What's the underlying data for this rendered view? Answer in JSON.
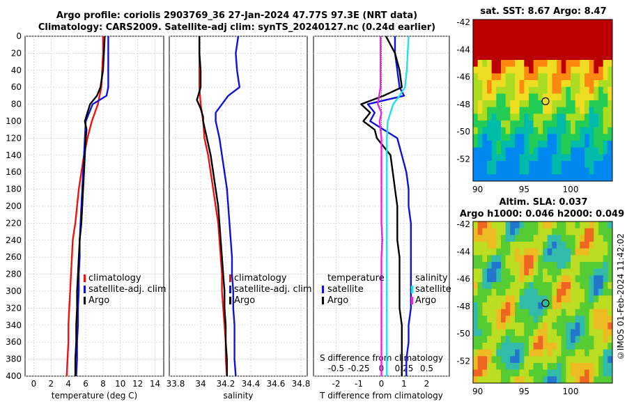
{
  "title_line1": "Argo profile: coriolis 2903769_36 27-Jan-2024 47.77S 97.3E (NRT data)",
  "title_line2": "Climatology: CARS2009. Satellite-adj clim: synTS_20240127.nc (0.24d earlier)",
  "sst_title": "sat. SST: 8.67 Argo: 8.47",
  "sla_title1": "Altim. SLA: 0.037",
  "sla_title2": "Argo h1000: 0.046 h2000: 0.049",
  "footer": "©IMOS 01-Feb-2024 11:42:02",
  "colors": {
    "clim": "#ee1111",
    "sat": "#1111dd",
    "argo": "#000000",
    "s_sat": "#22e0e8",
    "s_argo": "#ee22ee"
  },
  "chart_data": [
    {
      "type": "line",
      "panel": "temperature",
      "xlabel": "temperature (deg C)",
      "ylabel": "",
      "xlim": [
        -1,
        15
      ],
      "ylim": [
        0,
        400
      ],
      "xticks": [
        "0",
        "2",
        "4",
        "6",
        "8",
        "10",
        "12",
        "14"
      ],
      "yticks": [
        "0",
        "20",
        "40",
        "60",
        "80",
        "100",
        "120",
        "140",
        "160",
        "180",
        "200",
        "220",
        "240",
        "260",
        "280",
        "300",
        "320",
        "340",
        "360",
        "380",
        "400"
      ],
      "legend": [
        "climatology",
        "satellite-adj. clim",
        "Argo"
      ],
      "series": [
        {
          "name": "climatology",
          "color": "#ee1111",
          "depth": [
            0,
            20,
            40,
            60,
            80,
            100,
            120,
            140,
            160,
            180,
            200,
            220,
            240,
            260,
            280,
            300,
            320,
            340,
            360,
            380,
            400
          ],
          "values": [
            8.0,
            8.0,
            7.9,
            7.8,
            7.4,
            6.7,
            6.2,
            5.8,
            5.5,
            5.2,
            5.0,
            4.8,
            4.5,
            4.4,
            4.3,
            4.2,
            4.1,
            4.0,
            4.0,
            3.9,
            3.8
          ]
        },
        {
          "name": "satellite-adj. clim",
          "color": "#1111dd",
          "depth": [
            0,
            20,
            40,
            60,
            70,
            80,
            90,
            100,
            120,
            140,
            160,
            180,
            200,
            220,
            240,
            260,
            280,
            300,
            320,
            340,
            360,
            380,
            400
          ],
          "values": [
            8.6,
            8.6,
            8.6,
            8.6,
            8.4,
            6.8,
            6.4,
            6.0,
            5.9,
            5.8,
            5.7,
            5.6,
            5.5,
            5.4,
            5.3,
            5.3,
            5.2,
            5.2,
            5.1,
            5.1,
            5.0,
            5.0,
            4.9
          ]
        },
        {
          "name": "Argo",
          "color": "#000000",
          "depth": [
            0,
            20,
            40,
            60,
            70,
            80,
            90,
            100,
            110,
            120,
            140,
            160,
            180,
            200,
            220,
            240,
            260,
            280,
            300,
            320,
            340,
            360,
            380,
            400
          ],
          "values": [
            8.2,
            8.1,
            8.0,
            7.7,
            7.3,
            6.5,
            6.2,
            5.9,
            6.1,
            6.0,
            5.9,
            5.8,
            5.7,
            5.6,
            5.5,
            5.3,
            5.2,
            5.1,
            5.0,
            5.0,
            4.9,
            4.9,
            4.8,
            4.8
          ]
        }
      ]
    },
    {
      "type": "line",
      "panel": "salinity",
      "xlabel": "salinity",
      "xlim": [
        33.75,
        34.85
      ],
      "ylim": [
        0,
        400
      ],
      "xticks": [
        "33.8",
        "34",
        "34.2",
        "34.4",
        "34.6",
        "34.8"
      ],
      "legend": [
        "climatology",
        "satellite-adj. clim",
        "Argo"
      ],
      "series": [
        {
          "name": "climatology",
          "color": "#ee1111",
          "depth": [
            0,
            20,
            40,
            60,
            80,
            100,
            120,
            140,
            160,
            180,
            200,
            220,
            240,
            260,
            280,
            300,
            320,
            340,
            360,
            380,
            400
          ],
          "values": [
            33.99,
            33.99,
            33.99,
            33.99,
            34.0,
            34.02,
            34.03,
            34.06,
            34.08,
            34.1,
            34.12,
            34.14,
            34.15,
            34.16,
            34.17,
            34.17,
            34.18,
            34.19,
            34.2,
            34.2,
            34.21
          ]
        },
        {
          "name": "satellite-adj. clim",
          "color": "#1111dd",
          "depth": [
            0,
            20,
            40,
            60,
            70,
            80,
            90,
            100,
            120,
            140,
            160,
            180,
            200,
            220,
            240,
            260,
            280,
            300,
            320,
            340,
            360,
            380,
            400
          ],
          "values": [
            34.3,
            34.28,
            34.29,
            34.31,
            34.22,
            34.17,
            34.12,
            34.12,
            34.15,
            34.17,
            34.19,
            34.21,
            34.22,
            34.23,
            34.24,
            34.25,
            34.25,
            34.26,
            34.26,
            34.27,
            34.27,
            34.27,
            34.28
          ]
        },
        {
          "name": "Argo",
          "color": "#000000",
          "depth": [
            0,
            20,
            40,
            60,
            75,
            85,
            95,
            100,
            120,
            140,
            160,
            180,
            200,
            220,
            240,
            260,
            280,
            300,
            320,
            340,
            360,
            380,
            400
          ],
          "values": [
            33.99,
            33.99,
            34.0,
            34.0,
            33.97,
            34.0,
            34.02,
            34.02,
            34.05,
            34.08,
            34.1,
            34.12,
            34.14,
            34.15,
            34.16,
            34.17,
            34.18,
            34.19,
            34.19,
            34.2,
            34.2,
            34.21,
            34.21
          ]
        }
      ]
    },
    {
      "type": "line",
      "panel": "differences",
      "xlabel": "T difference from climatology",
      "xlabel_top": "S difference from climatology",
      "xlim": [
        -3,
        3
      ],
      "ylim": [
        0,
        400
      ],
      "xticks": [
        "-2",
        "-1",
        "0",
        "1",
        "2"
      ],
      "xticks_top": [
        "-0.5",
        "-0.25",
        "0",
        "0.25",
        "0.5"
      ],
      "legend_t": [
        "temperature",
        "satellite",
        "Argo"
      ],
      "legend_s": [
        "salinity",
        "satellite",
        "Argo"
      ],
      "series": [
        {
          "name": "T satellite",
          "color": "#1111dd",
          "depth": [
            0,
            20,
            40,
            60,
            70,
            80,
            90,
            100,
            120,
            140,
            160,
            180,
            200,
            220,
            240,
            260,
            280,
            300,
            320,
            340,
            360,
            380,
            400
          ],
          "values": [
            0.6,
            0.6,
            0.7,
            0.8,
            1.0,
            -0.6,
            -0.3,
            -0.5,
            0.7,
            0.9,
            1.1,
            1.2,
            1.2,
            1.3,
            1.3,
            1.3,
            1.3,
            1.3,
            1.3,
            1.2,
            1.2,
            1.1,
            1.1
          ]
        },
        {
          "name": "T Argo",
          "color": "#000000",
          "depth": [
            0,
            20,
            40,
            60,
            70,
            80,
            90,
            100,
            110,
            120,
            140,
            160,
            180,
            200,
            220,
            240,
            260,
            280,
            300,
            320,
            340,
            360,
            380,
            400
          ],
          "values": [
            0.2,
            0.6,
            0.8,
            0.9,
            0.1,
            -0.9,
            -0.5,
            -0.8,
            -0.3,
            -0.2,
            0.4,
            0.5,
            0.6,
            0.7,
            0.7,
            0.7,
            0.8,
            0.8,
            0.8,
            0.8,
            0.9,
            0.9,
            0.9,
            0.9
          ]
        },
        {
          "name": "S satellite",
          "color": "#22e0e8",
          "depth": [
            0,
            20,
            40,
            60,
            70,
            80,
            90,
            100,
            120,
            140,
            160,
            180,
            200,
            220,
            240,
            260,
            280,
            300,
            320,
            340,
            360,
            380,
            400
          ],
          "values": [
            0.3,
            0.29,
            0.28,
            0.26,
            0.2,
            0.13,
            0.1,
            0.07,
            0.06,
            0.06,
            0.06,
            0.06,
            0.06,
            0.06,
            0.06,
            0.06,
            0.06,
            0.06,
            0.06,
            0.06,
            0.06,
            0.06,
            0.06
          ]
        },
        {
          "name": "S Argo",
          "color": "#ee22ee",
          "depth": [
            0,
            20,
            40,
            60,
            80,
            90,
            100,
            120,
            140,
            160,
            180,
            200,
            220,
            240,
            260,
            280,
            300,
            320,
            340,
            360,
            380,
            400
          ],
          "values": [
            -0.01,
            -0.01,
            -0.01,
            -0.01,
            -0.04,
            0.0,
            -0.02,
            0.0,
            0.0,
            0.0,
            0.0,
            0.0,
            0.0,
            0.01,
            0.0,
            0.0,
            0.0,
            0.0,
            0.0,
            0.0,
            0.0,
            0.0
          ]
        }
      ]
    },
    {
      "type": "heatmap",
      "panel": "sst_map",
      "title": "sat. SST: 8.67 Argo: 8.47",
      "xlim": [
        89.5,
        104.5
      ],
      "ylim": [
        -53.6,
        -41.8
      ],
      "xticks": [
        "90",
        "95",
        "100"
      ],
      "yticks": [
        "-42",
        "-44",
        "-46",
        "-48",
        "-50",
        "-52"
      ],
      "marker": {
        "lon": 97.3,
        "lat": -47.77
      }
    },
    {
      "type": "heatmap",
      "panel": "sla_map",
      "title": "Altim. SLA: 0.037",
      "xlim": [
        89.5,
        104.5
      ],
      "ylim": [
        -53.6,
        -41.8
      ],
      "xticks": [
        "90",
        "95",
        "100"
      ],
      "yticks": [
        "-42",
        "-44",
        "-46",
        "-48",
        "-50",
        "-52"
      ],
      "marker": {
        "lon": 97.3,
        "lat": -47.77
      }
    }
  ]
}
